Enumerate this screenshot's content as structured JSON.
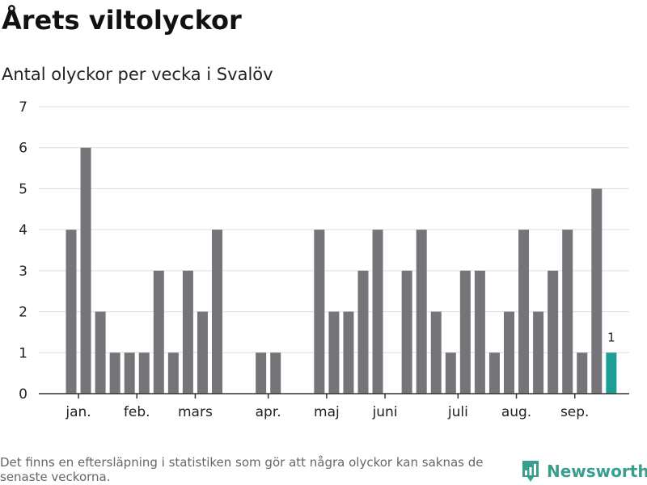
{
  "title": "Årets viltolyckor",
  "subtitle": "Antal olyckor per vecka i Svalöv",
  "footnote": "Det finns en eftersläpning i statistiken som gör att några olyckor kan saknas de senaste veckorna.",
  "brand": {
    "name": "Newsworthy",
    "icon": "newsworthy-logo-icon"
  },
  "colors": {
    "bar": "#757478",
    "highlight": "#1a9e95",
    "grid": "#dddddd",
    "axis": "#333333"
  },
  "chart_data": {
    "type": "bar",
    "title": "",
    "xlabel": "",
    "ylabel": "",
    "ylim": [
      0,
      7
    ],
    "yticks": [
      0,
      1,
      2,
      3,
      4,
      5,
      6,
      7
    ],
    "grid": true,
    "weeks": [
      1,
      2,
      3,
      4,
      5,
      6,
      7,
      8,
      9,
      10,
      11,
      12,
      13,
      14,
      15,
      16,
      17,
      18,
      19,
      20,
      21,
      22,
      23,
      24,
      25,
      26,
      27,
      28,
      29,
      30,
      31,
      32,
      33,
      34,
      35,
      36,
      37,
      38
    ],
    "values": [
      4,
      6,
      2,
      1,
      1,
      1,
      3,
      1,
      3,
      2,
      4,
      0,
      0,
      1,
      1,
      0,
      0,
      4,
      2,
      2,
      3,
      4,
      0,
      3,
      4,
      2,
      1,
      3,
      3,
      1,
      2,
      4,
      2,
      3,
      4,
      1,
      5,
      1
    ],
    "highlight_index": 37,
    "highlight_label": "1",
    "month_labels": [
      {
        "label": "jan.",
        "week": 1.5
      },
      {
        "label": "feb.",
        "week": 5.5
      },
      {
        "label": "mars",
        "week": 9.5
      },
      {
        "label": "apr.",
        "week": 14.5
      },
      {
        "label": "maj",
        "week": 18.5
      },
      {
        "label": "juni",
        "week": 22.5
      },
      {
        "label": "juli",
        "week": 27.5
      },
      {
        "label": "aug.",
        "week": 31.5
      },
      {
        "label": "sep.",
        "week": 35.5
      }
    ]
  }
}
